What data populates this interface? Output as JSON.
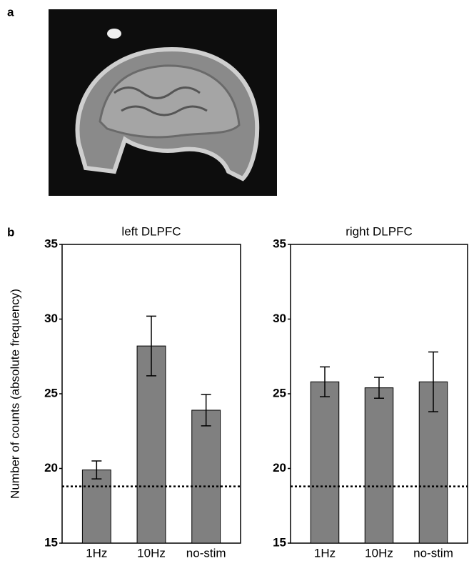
{
  "panel_labels": [
    "a",
    "b"
  ],
  "chart_data": [
    {
      "type": "bar",
      "title": "left DLPFC",
      "ylabel": "Number of counts (absolute frequency)",
      "categories": [
        "1Hz",
        "10Hz",
        "no-stim"
      ],
      "values": [
        19.9,
        28.2,
        23.9
      ],
      "errors": [
        0.6,
        2.0,
        1.05
      ],
      "color": "#808080",
      "reference_line": 18.8,
      "ylim": [
        15,
        35
      ],
      "yticks": [
        15,
        20,
        25,
        30,
        35
      ],
      "grid": false
    },
    {
      "type": "bar",
      "title": "right DLPFC",
      "categories": [
        "1Hz",
        "10Hz",
        "no-stim"
      ],
      "values": [
        25.8,
        25.4,
        25.8
      ],
      "errors": [
        1.0,
        0.7,
        2.0
      ],
      "color": "#808080",
      "reference_line": 18.8,
      "ylim": [
        15,
        35
      ],
      "yticks": [
        15,
        20,
        25,
        30,
        35
      ],
      "grid": false
    }
  ]
}
